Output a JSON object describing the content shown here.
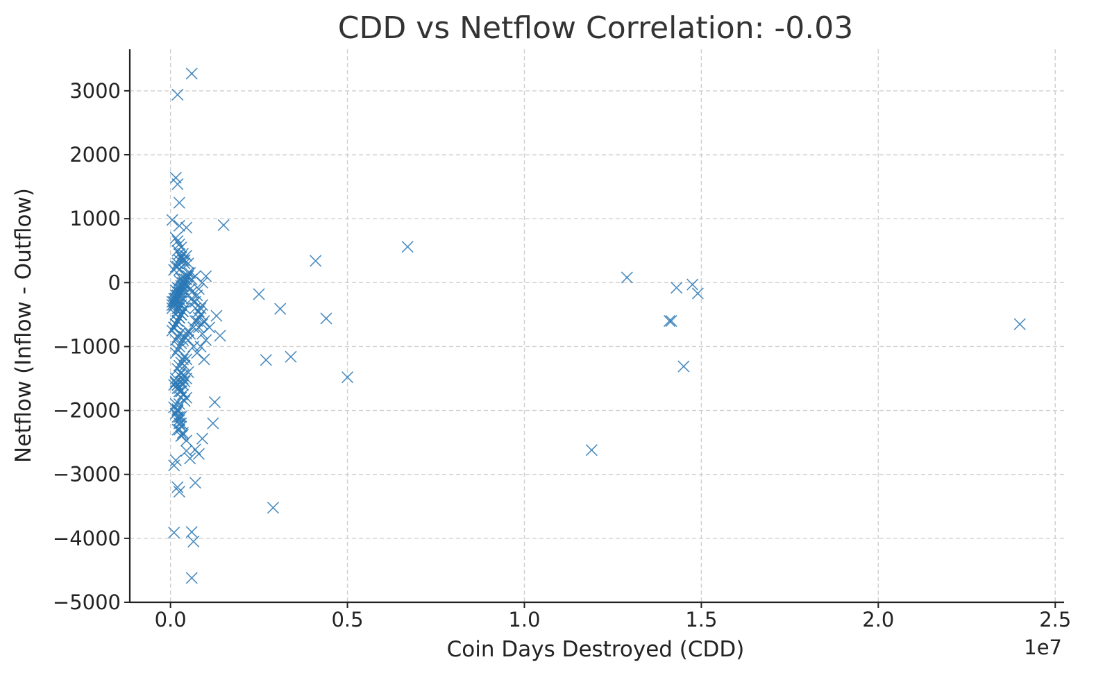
{
  "chart_data": {
    "type": "scatter",
    "title": "CDD vs Netflow Correlation: -0.03",
    "xlabel": "Coin Days Destroyed (CDD)",
    "ylabel": "Netflow (Inflow - Outflow)",
    "x_offset_label": "1e7",
    "xlim": [
      -1150000,
      25250000
    ],
    "ylim": [
      -5000,
      3650
    ],
    "x_ticks": [
      0,
      5000000,
      10000000,
      15000000,
      20000000,
      25000000
    ],
    "x_tick_labels": [
      "0.0",
      "0.5",
      "1.0",
      "1.5",
      "2.0",
      "2.5"
    ],
    "y_ticks": [
      -5000,
      -4000,
      -3000,
      -2000,
      -1000,
      0,
      1000,
      2000,
      3000
    ],
    "y_tick_labels": [
      "−5000",
      "−4000",
      "−3000",
      "−2000",
      "−1000",
      "0",
      "1000",
      "2000",
      "3000"
    ],
    "grid": true,
    "marker": "x",
    "color": "#2a78b5",
    "x": [
      600000,
      200000,
      150000,
      200000,
      250000,
      50000,
      250000,
      450000,
      1500000,
      6700000,
      4100000,
      2500000,
      3100000,
      4400000,
      2700000,
      3400000,
      5000000,
      1300000,
      1400000,
      1200000,
      1250000,
      2900000,
      12900000,
      14300000,
      14750000,
      14900000,
      14100000,
      14150000,
      14500000,
      11900000,
      24000000,
      600000,
      650000,
      100000,
      600000,
      900000,
      800000,
      700000,
      550000,
      450000,
      700000,
      200000,
      250000,
      100000,
      150000,
      300000,
      350000,
      200000,
      250000,
      300000,
      150000,
      200000,
      250000,
      400000,
      450000,
      350000,
      300000,
      250000,
      200000,
      400000,
      450000,
      350000,
      300000,
      150000,
      100000,
      200000,
      250000,
      300000,
      350000,
      400000,
      150000,
      200000,
      250000,
      300000,
      350000,
      400000,
      450000,
      500000,
      100000,
      150000,
      200000,
      250000,
      300000,
      350000,
      400000,
      50000,
      100000,
      150000,
      200000,
      250000,
      300000,
      350000,
      400000,
      450000,
      500000,
      550000,
      50000,
      100000,
      150000,
      200000,
      250000,
      300000,
      350000,
      400000,
      450000,
      500000,
      100000,
      150000,
      200000,
      250000,
      300000,
      350000,
      50000,
      100000,
      150000,
      200000,
      250000,
      300000,
      350000,
      100000,
      150000,
      200000,
      250000,
      300000,
      150000,
      200000,
      250000,
      200000,
      250000,
      300000,
      350000,
      400000,
      150000,
      200000,
      250000,
      300000,
      50000,
      100000,
      150000,
      200000,
      250000,
      300000,
      350000,
      100000,
      150000,
      200000,
      250000,
      300000,
      200000,
      250000,
      300000,
      350000,
      150000,
      200000,
      250000,
      300000,
      600000,
      700000,
      800000,
      900000,
      1000000,
      700000,
      800000,
      900000,
      600000,
      700000,
      800000,
      900000,
      500000,
      600000,
      700000,
      800000,
      900000,
      1000000,
      650000,
      750000,
      850000,
      950000,
      500000,
      550000,
      650000,
      750000,
      850000,
      1100000,
      950000,
      850000,
      750000,
      650000,
      550000,
      400000,
      450000,
      500000,
      450000,
      400000,
      500000,
      150000,
      200000,
      250000,
      300000,
      150000,
      200000,
      250000,
      300000,
      250000,
      100000,
      200000,
      300000,
      350000,
      450000,
      200000,
      250000,
      150000,
      200000,
      250000,
      300000,
      350000,
      300000,
      350000,
      200000,
      250000,
      150000,
      200000,
      350000,
      400000,
      250000,
      300000
    ],
    "y": [
      3270,
      2940,
      1640,
      1540,
      1250,
      980,
      890,
      860,
      900,
      560,
      340,
      -180,
      -410,
      -560,
      -1210,
      -1160,
      -1480,
      -520,
      -830,
      -2200,
      -1870,
      -3520,
      80,
      -80,
      -30,
      -170,
      -600,
      -600,
      -1310,
      -2620,
      -650,
      -3900,
      -4050,
      -3910,
      -4620,
      -2440,
      -2680,
      -2610,
      -2750,
      -2630,
      -3130,
      -3200,
      -3270,
      -2860,
      -2780,
      -2400,
      -2350,
      -2300,
      -2200,
      -2100,
      -2050,
      -1980,
      -1900,
      -1850,
      -1800,
      -1750,
      -1700,
      -1650,
      -1600,
      -1550,
      -1500,
      -1450,
      -1400,
      -1550,
      -1600,
      -1350,
      -1300,
      -1250,
      -1200,
      -1150,
      -1100,
      -1050,
      -1000,
      -950,
      -900,
      -850,
      -800,
      -750,
      -700,
      -650,
      -600,
      -550,
      -500,
      -450,
      -400,
      -350,
      -300,
      -250,
      -200,
      -150,
      -100,
      -50,
      0,
      50,
      100,
      150,
      -300,
      -250,
      -200,
      -150,
      -100,
      -50,
      0,
      50,
      100,
      150,
      200,
      250,
      300,
      350,
      400,
      450,
      -400,
      -350,
      -300,
      -250,
      -200,
      -150,
      -100,
      -700,
      -650,
      -600,
      -550,
      -500,
      -900,
      -850,
      -800,
      500,
      450,
      400,
      350,
      300,
      700,
      650,
      600,
      550,
      -750,
      -700,
      -650,
      -600,
      -550,
      -500,
      -450,
      -300,
      -250,
      -200,
      -150,
      -100,
      -400,
      -350,
      -300,
      -250,
      -500,
      -450,
      -400,
      -350,
      50,
      100,
      -100,
      0,
      100,
      -300,
      -450,
      -350,
      -150,
      -600,
      -700,
      -800,
      -50,
      -250,
      -400,
      -550,
      -650,
      -900,
      -1000,
      -1100,
      -1000,
      -1200,
      -900,
      -800,
      -700,
      -600,
      -500,
      -700,
      -600,
      -400,
      -200,
      -300,
      -100,
      350,
      420,
      300,
      -1200,
      -1300,
      -1400,
      -1500,
      -1600,
      -1700,
      -1800,
      -1900,
      -2000,
      -2100,
      -2200,
      -2300,
      -1950,
      -2100,
      -2250,
      -2380,
      -2470,
      -2010,
      -2150,
      -1570,
      -1650,
      -1450,
      -1550,
      -1600,
      -1700,
      -1500,
      250,
      200,
      -120,
      -80,
      -60,
      -20,
      30,
      70
    ]
  }
}
